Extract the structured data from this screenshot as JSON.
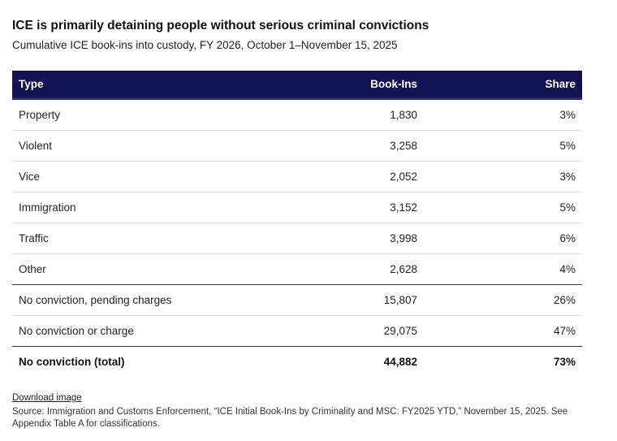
{
  "title": "ICE is primarily detaining people without serious criminal convictions",
  "subtitle": "Cumulative ICE book-ins into custody, FY 2026, October 1–November 15, 2025",
  "chart_data": {
    "type": "table",
    "columns": [
      "Type",
      "Book-Ins",
      "Share"
    ],
    "rows": [
      {
        "type": "Property",
        "book_ins": "1,830",
        "share": "3%"
      },
      {
        "type": "Violent",
        "book_ins": "3,258",
        "share": "5%"
      },
      {
        "type": "Vice",
        "book_ins": "2,052",
        "share": "3%"
      },
      {
        "type": "Immigration",
        "book_ins": "3,152",
        "share": "5%"
      },
      {
        "type": "Traffic",
        "book_ins": "3,998",
        "share": "6%"
      },
      {
        "type": "Other",
        "book_ins": "2,628",
        "share": "4%"
      },
      {
        "type": "No conviction, pending charges",
        "book_ins": "15,807",
        "share": "26%"
      },
      {
        "type": "No conviction or charge",
        "book_ins": "29,075",
        "share": "47%"
      },
      {
        "type": "No conviction (total)",
        "book_ins": "44,882",
        "share": "73%"
      }
    ]
  },
  "footer": {
    "download_label": "Download image",
    "source": "Source: Immigration and Customs Enforcement, “ICE Initial Book-Ins by Criminality and MSC: FY2025 YTD,” November 15, 2025. See Appendix Table A for classifications."
  },
  "colors": {
    "header_bg": "#0f1150",
    "header_text": "#ffffff"
  }
}
